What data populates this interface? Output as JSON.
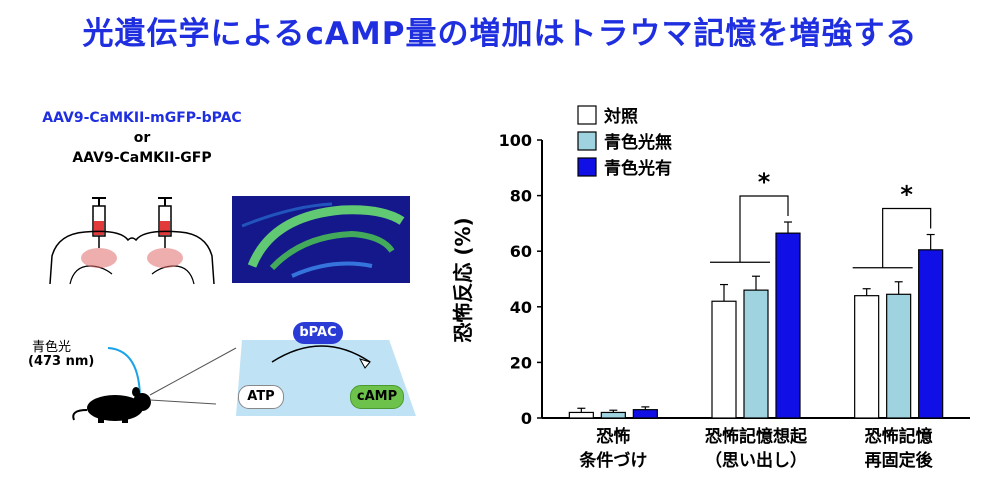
{
  "title": "光遺伝学によるcAMP量の増加はトラウマ記憶を増強する",
  "left": {
    "virus_line1": "AAV9-CaMKII-mGFP-bPAC",
    "virus_or": "or",
    "virus_line2": "AAV9-CaMKII-GFP",
    "light_label": "青色光",
    "light_nm": "(473 nm)",
    "pathway": {
      "enzyme": "bPAC",
      "substrate": "ATP",
      "product": "cAMP"
    },
    "colors": {
      "accent": "#1f2fe0",
      "bpac": "#2b3bd6",
      "camp": "#6cc24a",
      "panel": "#bfe3f5"
    }
  },
  "chart_data": {
    "type": "bar",
    "ylabel": "恐怖反応 (%)",
    "ylim": [
      0,
      100
    ],
    "yticks": [
      0,
      20,
      40,
      60,
      80,
      100
    ],
    "categories": [
      {
        "line1": "恐怖",
        "line2": "条件づけ"
      },
      {
        "line1": "恐怖記憶想起",
        "line2": "（思い出し）"
      },
      {
        "line1": "恐怖記憶",
        "line2": "再固定後"
      }
    ],
    "series": [
      {
        "name": "対照",
        "color": "#ffffff",
        "values": [
          2,
          42,
          44
        ],
        "errors": [
          1.5,
          6,
          2.5
        ]
      },
      {
        "name": "青色光無",
        "color": "#9fd3df",
        "values": [
          2,
          46,
          44.5
        ],
        "errors": [
          0.8,
          5,
          4.5
        ]
      },
      {
        "name": "青色光有",
        "color": "#1010e6",
        "values": [
          3,
          66.5,
          60.5
        ],
        "errors": [
          1,
          4,
          5.5
        ]
      }
    ],
    "significance": [
      {
        "group": 1,
        "label": "*"
      },
      {
        "group": 2,
        "label": "*"
      }
    ],
    "legend_position": "top-left"
  }
}
